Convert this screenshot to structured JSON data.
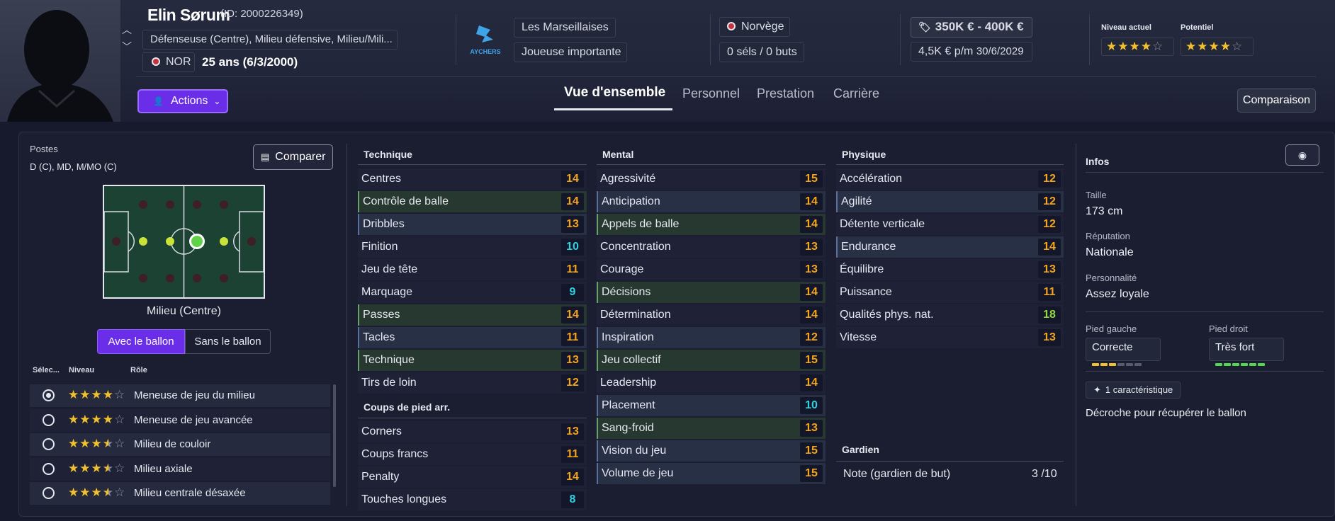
{
  "player": {
    "name": "Elin Sørum",
    "id_text": "(ID: 2000226349)",
    "positions_text": "Défenseuse (Centre), Milieu défensive, Milieu/Mili...",
    "nation_code": "NOR",
    "age_text": "25 ans (6/3/2000)"
  },
  "club": {
    "name": "Les Marseillaises",
    "status": "Joueuse importante",
    "crest_text": "AYCHERS"
  },
  "nation": {
    "name": "Norvège",
    "caps": "0 séls / 0 buts"
  },
  "contract": {
    "value": "350K € - 400K €",
    "wage": "4,5K € p/m",
    "expiry": "30/6/2029"
  },
  "ability": {
    "current_label": "Niveau actuel",
    "current_stars": 4,
    "potential_label": "Potentiel",
    "potential_stars": 4
  },
  "actions_label": "Actions",
  "tabs": [
    "Vue d'ensemble",
    "Personnel",
    "Prestation",
    "Carrière"
  ],
  "active_tab": 0,
  "comparison_label": "Comparaison",
  "positions_panel": {
    "title": "Postes",
    "positions": "D (C), MD, M/MO (C)",
    "compare_label": "Comparer",
    "selected_position": "Milieu (Centre)",
    "toggle": [
      "Avec le ballon",
      "Sans le ballon"
    ],
    "roles_headers": [
      "Sélec...",
      "Niveau",
      "Rôle"
    ],
    "roles": [
      {
        "name": "Meneuse de jeu du milieu",
        "stars": 4,
        "selected": true
      },
      {
        "name": "Meneuse de jeu avancée",
        "stars": 4,
        "selected": false
      },
      {
        "name": "Milieu de couloir",
        "stars": 3.5,
        "selected": false
      },
      {
        "name": "Milieu axiale",
        "stars": 3.5,
        "selected": false
      },
      {
        "name": "Milieu centrale désaxée",
        "stars": 3.5,
        "selected": false
      }
    ]
  },
  "technique": {
    "title": "Technique",
    "attrs": [
      {
        "name": "Centres",
        "value": 14
      },
      {
        "name": "Contrôle de balle",
        "value": 14
      },
      {
        "name": "Dribbles",
        "value": 13
      },
      {
        "name": "Finition",
        "value": 10
      },
      {
        "name": "Jeu de tête",
        "value": 11
      },
      {
        "name": "Marquage",
        "value": 9
      },
      {
        "name": "Passes",
        "value": 14
      },
      {
        "name": "Tacles",
        "value": 11
      },
      {
        "name": "Technique",
        "value": 13
      },
      {
        "name": "Tirs de loin",
        "value": 12
      }
    ]
  },
  "set_pieces": {
    "title": "Coups de pied arr.",
    "attrs": [
      {
        "name": "Corners",
        "value": 13
      },
      {
        "name": "Coups francs",
        "value": 11
      },
      {
        "name": "Penalty",
        "value": 14
      },
      {
        "name": "Touches longues",
        "value": 8
      }
    ]
  },
  "mental": {
    "title": "Mental",
    "attrs": [
      {
        "name": "Agressivité",
        "value": 15
      },
      {
        "name": "Anticipation",
        "value": 14
      },
      {
        "name": "Appels de balle",
        "value": 14
      },
      {
        "name": "Concentration",
        "value": 13
      },
      {
        "name": "Courage",
        "value": 13
      },
      {
        "name": "Décisions",
        "value": 14
      },
      {
        "name": "Détermination",
        "value": 14
      },
      {
        "name": "Inspiration",
        "value": 12
      },
      {
        "name": "Jeu collectif",
        "value": 15
      },
      {
        "name": "Leadership",
        "value": 14
      },
      {
        "name": "Placement",
        "value": 10
      },
      {
        "name": "Sang-froid",
        "value": 13
      },
      {
        "name": "Vision du jeu",
        "value": 15
      },
      {
        "name": "Volume de jeu",
        "value": 15
      }
    ]
  },
  "physique": {
    "title": "Physique",
    "attrs": [
      {
        "name": "Accélération",
        "value": 12
      },
      {
        "name": "Agilité",
        "value": 12
      },
      {
        "name": "Détente verticale",
        "value": 12
      },
      {
        "name": "Endurance",
        "value": 14
      },
      {
        "name": "Équilibre",
        "value": 13
      },
      {
        "name": "Puissance",
        "value": 11
      },
      {
        "name": "Qualités phys. nat.",
        "value": 18
      },
      {
        "name": "Vitesse",
        "value": 13
      }
    ]
  },
  "goalkeeper": {
    "title": "Gardien",
    "label": "Note (gardien de but)",
    "value": "3 /10"
  },
  "infos": {
    "title": "Infos",
    "height_label": "Taille",
    "height": "173 cm",
    "reputation_label": "Réputation",
    "reputation": "Nationale",
    "personality_label": "Personnalité",
    "personality": "Assez loyale",
    "left_foot_label": "Pied gauche",
    "left_foot": "Correcte",
    "left_foot_level": 3,
    "right_foot_label": "Pied droit",
    "right_foot": "Très fort",
    "right_foot_level": 6,
    "trait_count": "1 caractéristique",
    "trait": "Décroche pour récupérer le ballon"
  },
  "colors": {
    "accent": "#6a2ee8",
    "star": "#f2c02c",
    "value_orange": "#f4a51c",
    "value_green": "#8ddb3f",
    "value_cyan": "#2fd3e0"
  }
}
